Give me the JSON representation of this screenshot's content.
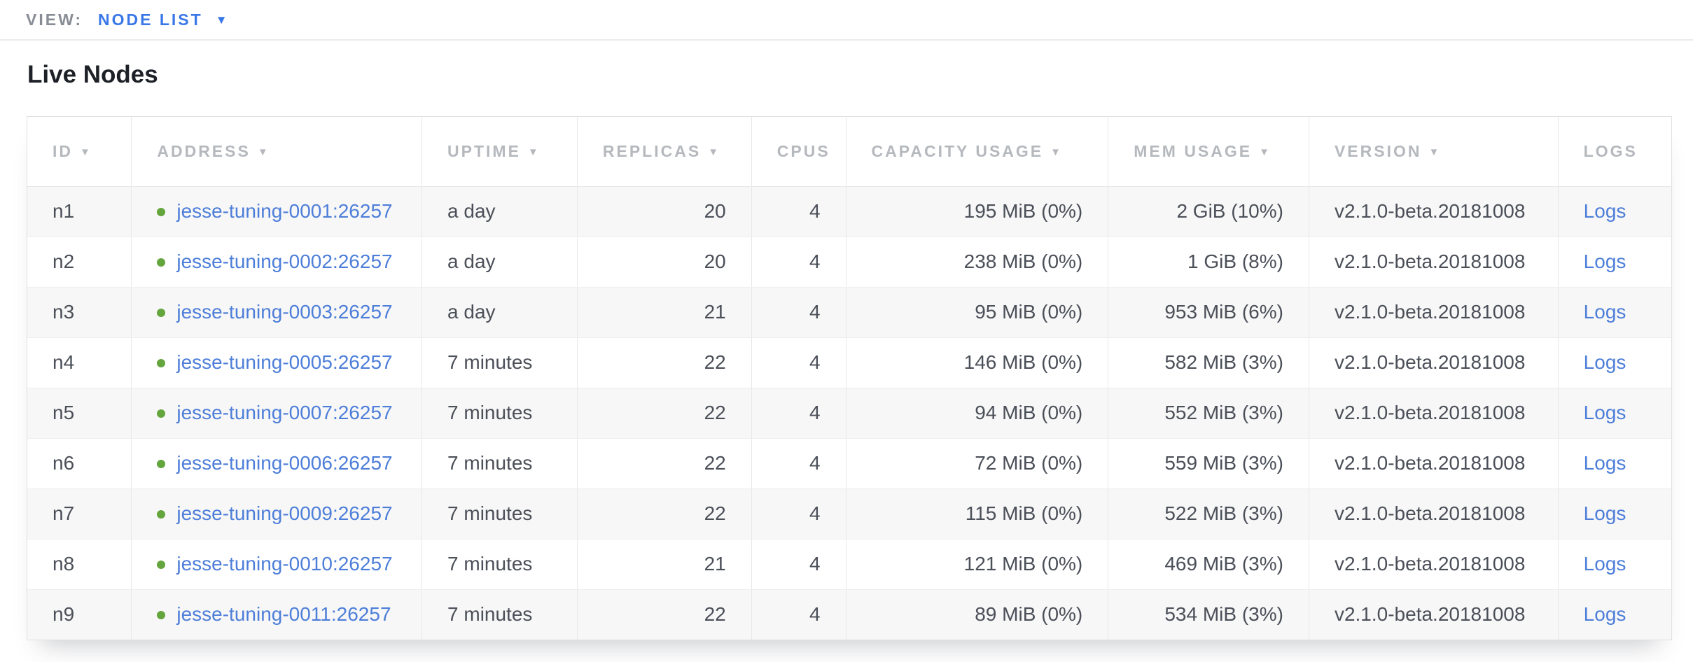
{
  "view_bar": {
    "label": "VIEW:",
    "selected": "NODE LIST",
    "caret_icon": "▼"
  },
  "page": {
    "title": "Live Nodes"
  },
  "icons": {
    "sort_desc": "▼",
    "dropdown_caret": "▼",
    "live_status_dot": "green-circle"
  },
  "colors": {
    "accent-blue": "#3a78e7",
    "link-blue": "#4d7ed9",
    "status-green": "#64a53d",
    "header-gray": "#b5b8bd",
    "text-dark": "#4b4f58",
    "row-alt-bg": "#f7f7f7"
  },
  "table": {
    "columns": [
      {
        "key": "id",
        "label": "ID",
        "sortable": true,
        "align": "left"
      },
      {
        "key": "address",
        "label": "ADDRESS",
        "sortable": true,
        "align": "left"
      },
      {
        "key": "uptime",
        "label": "UPTIME",
        "sortable": true,
        "align": "left"
      },
      {
        "key": "replicas",
        "label": "REPLICAS",
        "sortable": true,
        "align": "right"
      },
      {
        "key": "cpus",
        "label": "CPUS",
        "sortable": false,
        "align": "right"
      },
      {
        "key": "capacity",
        "label": "CAPACITY USAGE",
        "sortable": true,
        "align": "right"
      },
      {
        "key": "mem",
        "label": "MEM USAGE",
        "sortable": true,
        "align": "right"
      },
      {
        "key": "version",
        "label": "VERSION",
        "sortable": true,
        "align": "left"
      },
      {
        "key": "logs",
        "label": "LOGS",
        "sortable": false,
        "align": "left"
      }
    ],
    "rows": [
      {
        "id": "n1",
        "address": "jesse-tuning-0001:26257",
        "uptime": "a day",
        "replicas": "20",
        "cpus": "4",
        "capacity": "195 MiB (0%)",
        "mem": "2 GiB (10%)",
        "version": "v2.1.0-beta.20181008",
        "logs": "Logs",
        "status": "live"
      },
      {
        "id": "n2",
        "address": "jesse-tuning-0002:26257",
        "uptime": "a day",
        "replicas": "20",
        "cpus": "4",
        "capacity": "238 MiB (0%)",
        "mem": "1 GiB (8%)",
        "version": "v2.1.0-beta.20181008",
        "logs": "Logs",
        "status": "live"
      },
      {
        "id": "n3",
        "address": "jesse-tuning-0003:26257",
        "uptime": "a day",
        "replicas": "21",
        "cpus": "4",
        "capacity": "95 MiB (0%)",
        "mem": "953 MiB (6%)",
        "version": "v2.1.0-beta.20181008",
        "logs": "Logs",
        "status": "live"
      },
      {
        "id": "n4",
        "address": "jesse-tuning-0005:26257",
        "uptime": "7 minutes",
        "replicas": "22",
        "cpus": "4",
        "capacity": "146 MiB (0%)",
        "mem": "582 MiB (3%)",
        "version": "v2.1.0-beta.20181008",
        "logs": "Logs",
        "status": "live"
      },
      {
        "id": "n5",
        "address": "jesse-tuning-0007:26257",
        "uptime": "7 minutes",
        "replicas": "22",
        "cpus": "4",
        "capacity": "94 MiB (0%)",
        "mem": "552 MiB (3%)",
        "version": "v2.1.0-beta.20181008",
        "logs": "Logs",
        "status": "live"
      },
      {
        "id": "n6",
        "address": "jesse-tuning-0006:26257",
        "uptime": "7 minutes",
        "replicas": "22",
        "cpus": "4",
        "capacity": "72 MiB (0%)",
        "mem": "559 MiB (3%)",
        "version": "v2.1.0-beta.20181008",
        "logs": "Logs",
        "status": "live"
      },
      {
        "id": "n7",
        "address": "jesse-tuning-0009:26257",
        "uptime": "7 minutes",
        "replicas": "22",
        "cpus": "4",
        "capacity": "115 MiB (0%)",
        "mem": "522 MiB (3%)",
        "version": "v2.1.0-beta.20181008",
        "logs": "Logs",
        "status": "live"
      },
      {
        "id": "n8",
        "address": "jesse-tuning-0010:26257",
        "uptime": "7 minutes",
        "replicas": "21",
        "cpus": "4",
        "capacity": "121 MiB (0%)",
        "mem": "469 MiB (3%)",
        "version": "v2.1.0-beta.20181008",
        "logs": "Logs",
        "status": "live"
      },
      {
        "id": "n9",
        "address": "jesse-tuning-0011:26257",
        "uptime": "7 minutes",
        "replicas": "22",
        "cpus": "4",
        "capacity": "89 MiB (0%)",
        "mem": "534 MiB (3%)",
        "version": "v2.1.0-beta.20181008",
        "logs": "Logs",
        "status": "live"
      }
    ]
  }
}
